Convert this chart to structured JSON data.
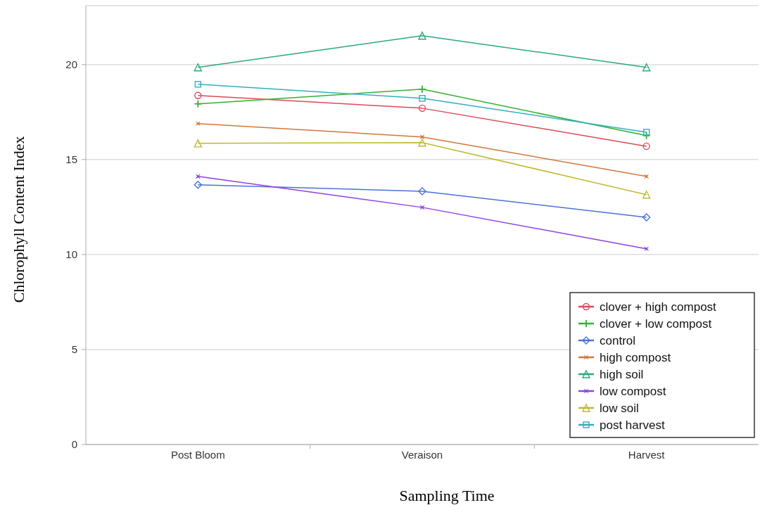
{
  "chart_data": {
    "type": "line",
    "xlabel": "Sampling Time",
    "ylabel": "Chlorophyll Content Index",
    "categories": [
      "Post Bloom",
      "Veraison",
      "Harvest"
    ],
    "ylim": [
      0,
      23.1
    ],
    "yticks": [
      0,
      5,
      10,
      15,
      20
    ],
    "grid": "y",
    "legend": "bottom right",
    "series": [
      {
        "name": "clover + high compost",
        "color": "#e0475a",
        "marker": "circle",
        "values": [
          18.37,
          17.7,
          15.7
        ]
      },
      {
        "name": "clover + low compost",
        "color": "#33b033",
        "marker": "cross",
        "values": [
          17.93,
          18.7,
          16.26
        ]
      },
      {
        "name": "control",
        "color": "#4a72d8",
        "marker": "diamond",
        "values": [
          13.67,
          13.33,
          11.96
        ]
      },
      {
        "name": "high compost",
        "color": "#d2773a",
        "marker": "star",
        "values": [
          16.89,
          16.19,
          14.11
        ]
      },
      {
        "name": "high soil",
        "color": "#2aaa7a",
        "marker": "triangle",
        "values": [
          19.85,
          21.52,
          19.85
        ]
      },
      {
        "name": "low compost",
        "color": "#9040e0",
        "marker": "star",
        "values": [
          14.11,
          12.48,
          10.3
        ]
      },
      {
        "name": "low soil",
        "color": "#c0b830",
        "marker": "triangle",
        "values": [
          15.85,
          15.89,
          13.15
        ]
      },
      {
        "name": "post harvest",
        "color": "#30b0c0",
        "marker": "square",
        "values": [
          18.96,
          18.22,
          16.44
        ]
      }
    ]
  }
}
